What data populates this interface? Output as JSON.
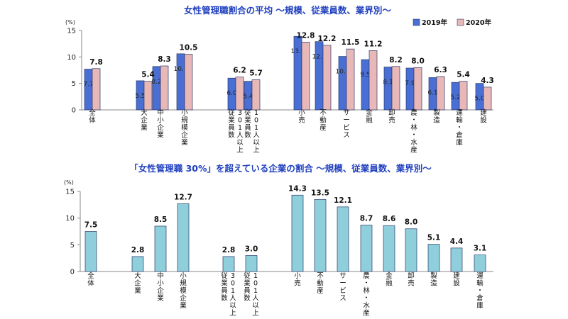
{
  "chart_data": [
    {
      "type": "bar",
      "title": "女性管理職割合の平均 ～規模、従業員数、業界別～",
      "unit": "(%)",
      "ylim": [
        0,
        15
      ],
      "yticks": [
        0,
        5,
        10,
        15
      ],
      "categories": [
        "全体",
        "大企業",
        "中小企業",
        "小規模企業",
        "301人以上 従業員数",
        "101人以上 従業員数",
        "小売",
        "不動産",
        "サービス",
        "金融",
        "卸売",
        "農・林・水産",
        "製造",
        "運輸・倉庫",
        "建設"
      ],
      "series": [
        {
          "name": "2019年",
          "color": "#4a6fd4",
          "values": [
            7.7,
            5.5,
            8.2,
            10.6,
            6.0,
            5.4,
            13.9,
            12.9,
            10.1,
            9.5,
            8.1,
            7.9,
            6.1,
            5.2,
            5.0
          ]
        },
        {
          "name": "2020年",
          "color": "#e8b8b8",
          "values": [
            7.8,
            5.4,
            8.3,
            10.5,
            6.2,
            5.7,
            12.8,
            12.2,
            11.5,
            11.2,
            8.2,
            8.0,
            6.3,
            5.4,
            4.3
          ]
        }
      ],
      "legend": "top-right"
    },
    {
      "type": "bar",
      "title": "「女性管理職 30%」を超えている企業の割合 ～規模、従業員数、業界別～",
      "unit": "(%)",
      "ylim": [
        0,
        15
      ],
      "yticks": [
        0,
        5,
        10,
        15
      ],
      "categories": [
        "全体",
        "大企業",
        "中小企業",
        "小規模企業",
        "301人以上 従業員数",
        "101人以上 従業員数",
        "小売",
        "不動産",
        "サービス",
        "農・林・水産",
        "金融",
        "卸売",
        "製造",
        "建設",
        "運輸・倉庫"
      ],
      "series": [
        {
          "color": "#8fcfdc",
          "values": [
            7.5,
            2.8,
            8.5,
            12.7,
            2.8,
            3.0,
            14.3,
            13.5,
            12.1,
            8.7,
            8.6,
            8.0,
            5.1,
            4.4,
            3.1
          ]
        }
      ]
    }
  ]
}
